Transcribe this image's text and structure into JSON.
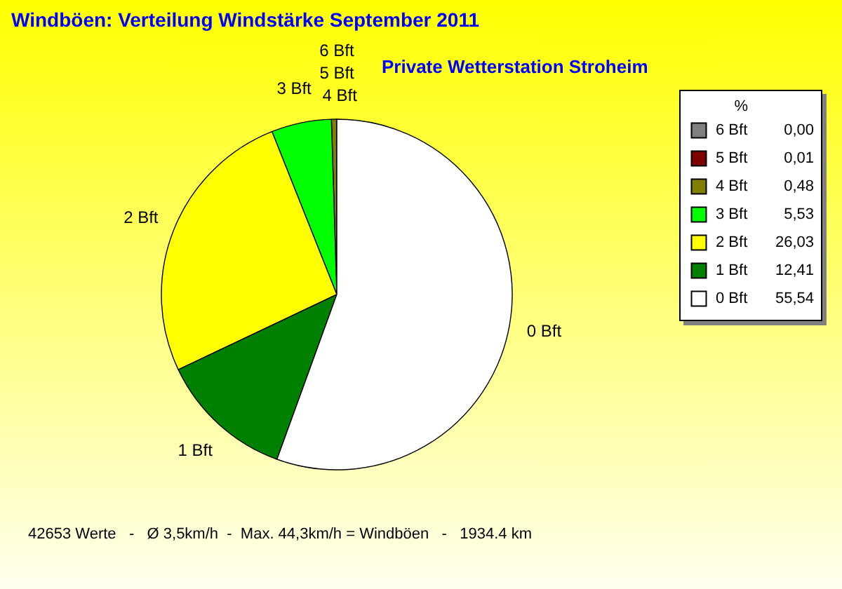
{
  "chart_data": {
    "type": "pie",
    "title": "Windböen: Verteilung Windstärke  September 2011",
    "subtitle": "Private Wetterstation Stroheim",
    "legend_title": "%",
    "categories": [
      "6 Bft",
      "5 Bft",
      "4 Bft",
      "3 Bft",
      "2 Bft",
      "1 Bft",
      "0 Bft"
    ],
    "values": [
      0.0,
      0.01,
      0.48,
      5.53,
      26.03,
      12.41,
      55.54
    ],
    "value_labels": [
      "0,00",
      "0,01",
      "0,48",
      "5,53",
      "26,03",
      "12,41",
      "55,54"
    ],
    "colors": [
      "#808080",
      "#800000",
      "#808000",
      "#00ff00",
      "#ffff00",
      "#008000",
      "#ffffff"
    ],
    "legend": "top right",
    "annotations": [
      "42653 Werte   -   Ø 3,5km/h  -  Max. 44,3km/h = Windböen   -   1934.4 km"
    ]
  }
}
